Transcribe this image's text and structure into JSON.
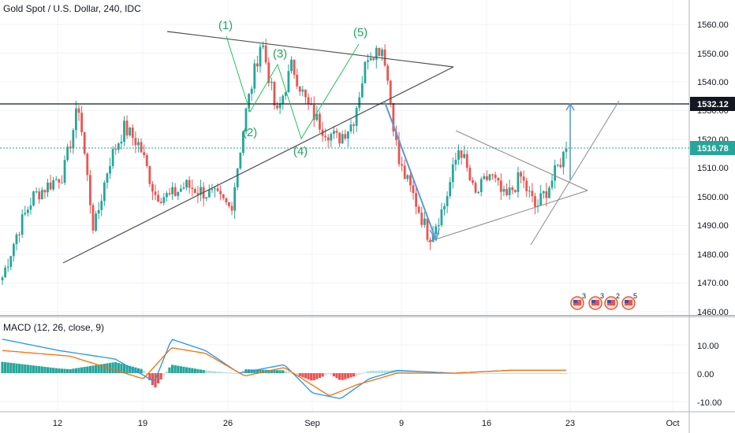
{
  "header": {
    "title": "Gold Spot / U.S. Dollar, 240, IDC"
  },
  "macd": {
    "title": "MACD (12, 26, close, 9)"
  },
  "price_axis": {
    "ticks": [
      "1560.00",
      "1550.00",
      "1540.00",
      "1530.00",
      "1520.00",
      "1510.00",
      "1500.00",
      "1490.00",
      "1480.00",
      "1470.00",
      "1460.00"
    ],
    "badge_high": "1532.12",
    "badge_last": "1516.78"
  },
  "macd_axis": {
    "ticks": [
      "10.00",
      "0.00",
      "-10.00"
    ]
  },
  "time_axis": {
    "ticks": [
      "12",
      "19",
      "26",
      "Sep",
      "9",
      "16",
      "23",
      "Oct"
    ]
  },
  "wave_labels": [
    "(1)",
    "(2)",
    "(3)",
    "(4)",
    "(5)"
  ],
  "events": [
    {
      "icon": "us-flag-icon",
      "count": "3"
    },
    {
      "icon": "us-flag-icon",
      "count": "3"
    },
    {
      "icon": "us-flag-icon",
      "count": "2"
    },
    {
      "icon": "us-flag-icon",
      "count": "5"
    }
  ],
  "colors": {
    "up": "#26a69a",
    "down": "#ef5350",
    "wave": "#22c55e",
    "macd_line": "#2196f3",
    "signal_line": "#ff6d00",
    "projection": "#5b9bd5",
    "last_price": "#26a69a"
  },
  "chart_data": [
    {
      "type": "candlestick",
      "title": "Gold Spot / U.S. Dollar, 240, IDC",
      "ylim": [
        1460,
        1565
      ],
      "x_ticks": [
        "12",
        "19",
        "26",
        "Sep",
        "9",
        "16",
        "23",
        "Oct"
      ],
      "waypoints": [
        [
          "Aug 06",
          1472
        ],
        [
          "Aug 07",
          1488
        ],
        [
          "Aug 08",
          1500
        ],
        [
          "Aug 09",
          1504
        ],
        [
          "Aug 12",
          1508
        ],
        [
          "Aug 13",
          1532
        ],
        [
          "Aug 13b",
          1488
        ],
        [
          "Aug 14",
          1512
        ],
        [
          "Aug 15",
          1524
        ],
        [
          "Aug 16",
          1518
        ],
        [
          "Aug 19",
          1501
        ],
        [
          "Aug 20",
          1500
        ],
        [
          "Aug 21",
          1504
        ],
        [
          "Aug 22",
          1502
        ],
        [
          "Aug 23",
          1500
        ],
        [
          "Aug 24",
          1496
        ],
        [
          "Aug 26",
          1530
        ],
        [
          "Aug 26b",
          1555
        ],
        [
          "Aug 27",
          1528
        ],
        [
          "Aug 28",
          1546
        ],
        [
          "Aug 29",
          1532
        ],
        [
          "Aug 30",
          1524
        ],
        [
          "Sep 02",
          1520
        ],
        [
          "Sep 03",
          1526
        ],
        [
          "Sep 04",
          1550
        ],
        [
          "Sep 05",
          1552
        ],
        [
          "Sep 06",
          1512
        ],
        [
          "Sep 09",
          1500
        ],
        [
          "Sep 10",
          1486
        ],
        [
          "Sep 11",
          1497
        ],
        [
          "Sep 12",
          1518
        ],
        [
          "Sep 13",
          1500
        ],
        [
          "Sep 16",
          1508
        ],
        [
          "Sep 17",
          1499
        ],
        [
          "Sep 18",
          1507
        ],
        [
          "Sep 19",
          1496
        ],
        [
          "Sep 20",
          1505
        ],
        [
          "Sep 23",
          1516.78
        ]
      ],
      "support_resistance": [
        1532.12
      ],
      "last_price": 1516.78
    },
    {
      "type": "macd",
      "title": "MACD (12, 26, close, 9)",
      "ylim": [
        -12,
        13
      ],
      "macd_waypoints": [
        [
          0,
          12
        ],
        [
          0.1,
          8
        ],
        [
          0.2,
          5
        ],
        [
          0.27,
          -3
        ],
        [
          0.3,
          12
        ],
        [
          0.36,
          8
        ],
        [
          0.42,
          0
        ],
        [
          0.5,
          3
        ],
        [
          0.55,
          -7
        ],
        [
          0.6,
          -9
        ],
        [
          0.65,
          -2
        ],
        [
          0.7,
          1
        ],
        [
          0.8,
          0
        ],
        [
          0.9,
          1
        ]
      ],
      "signal_waypoints": [
        [
          0,
          8
        ],
        [
          0.12,
          6
        ],
        [
          0.25,
          -2
        ],
        [
          0.3,
          9
        ],
        [
          0.36,
          7
        ],
        [
          0.43,
          -1
        ],
        [
          0.5,
          2
        ],
        [
          0.58,
          -8
        ],
        [
          0.63,
          -4
        ],
        [
          0.7,
          0
        ],
        [
          0.8,
          0
        ],
        [
          0.9,
          1
        ]
      ]
    }
  ]
}
